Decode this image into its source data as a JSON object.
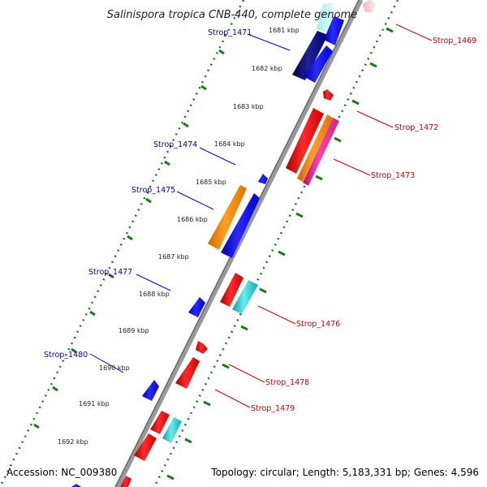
{
  "title": "Salinispora tropica CNB-440, complete genome",
  "accession": "Accession: NC_009380",
  "topology": "Topology: circular; Length: 5,183,331 bp; Genes: 4,596",
  "kbp_ticks": [
    "1681 kbp",
    "1682 kbp",
    "1683 kbp",
    "1684 kbp",
    "1685 kbp",
    "1686 kbp",
    "1687 kbp",
    "1688 kbp",
    "1689 kbp",
    "1690 kbp",
    "1691 kbp",
    "1692 kbp"
  ],
  "gene_labels_left": [
    "Strop_1471",
    "Strop_1474",
    "Strop_1475",
    "Strop_1477",
    "Strop_1480"
  ],
  "gene_labels_right": [
    "Strop_1469",
    "Strop_1472",
    "Strop_1473",
    "Strop_1476",
    "Strop_1478",
    "Strop_1479"
  ],
  "colors": {
    "forward_gene": "#ee1111",
    "reverse_gene": "#1111ee",
    "orange_gene": "#ff8800",
    "magenta_gene": "#ee2288",
    "cyan_gene": "#22cccc",
    "navy_gene": "#111177",
    "backbone": "#808080",
    "dotted_ring": "#1a7a1a",
    "left_label": "#0000aa",
    "right_label": "#cc0000"
  }
}
